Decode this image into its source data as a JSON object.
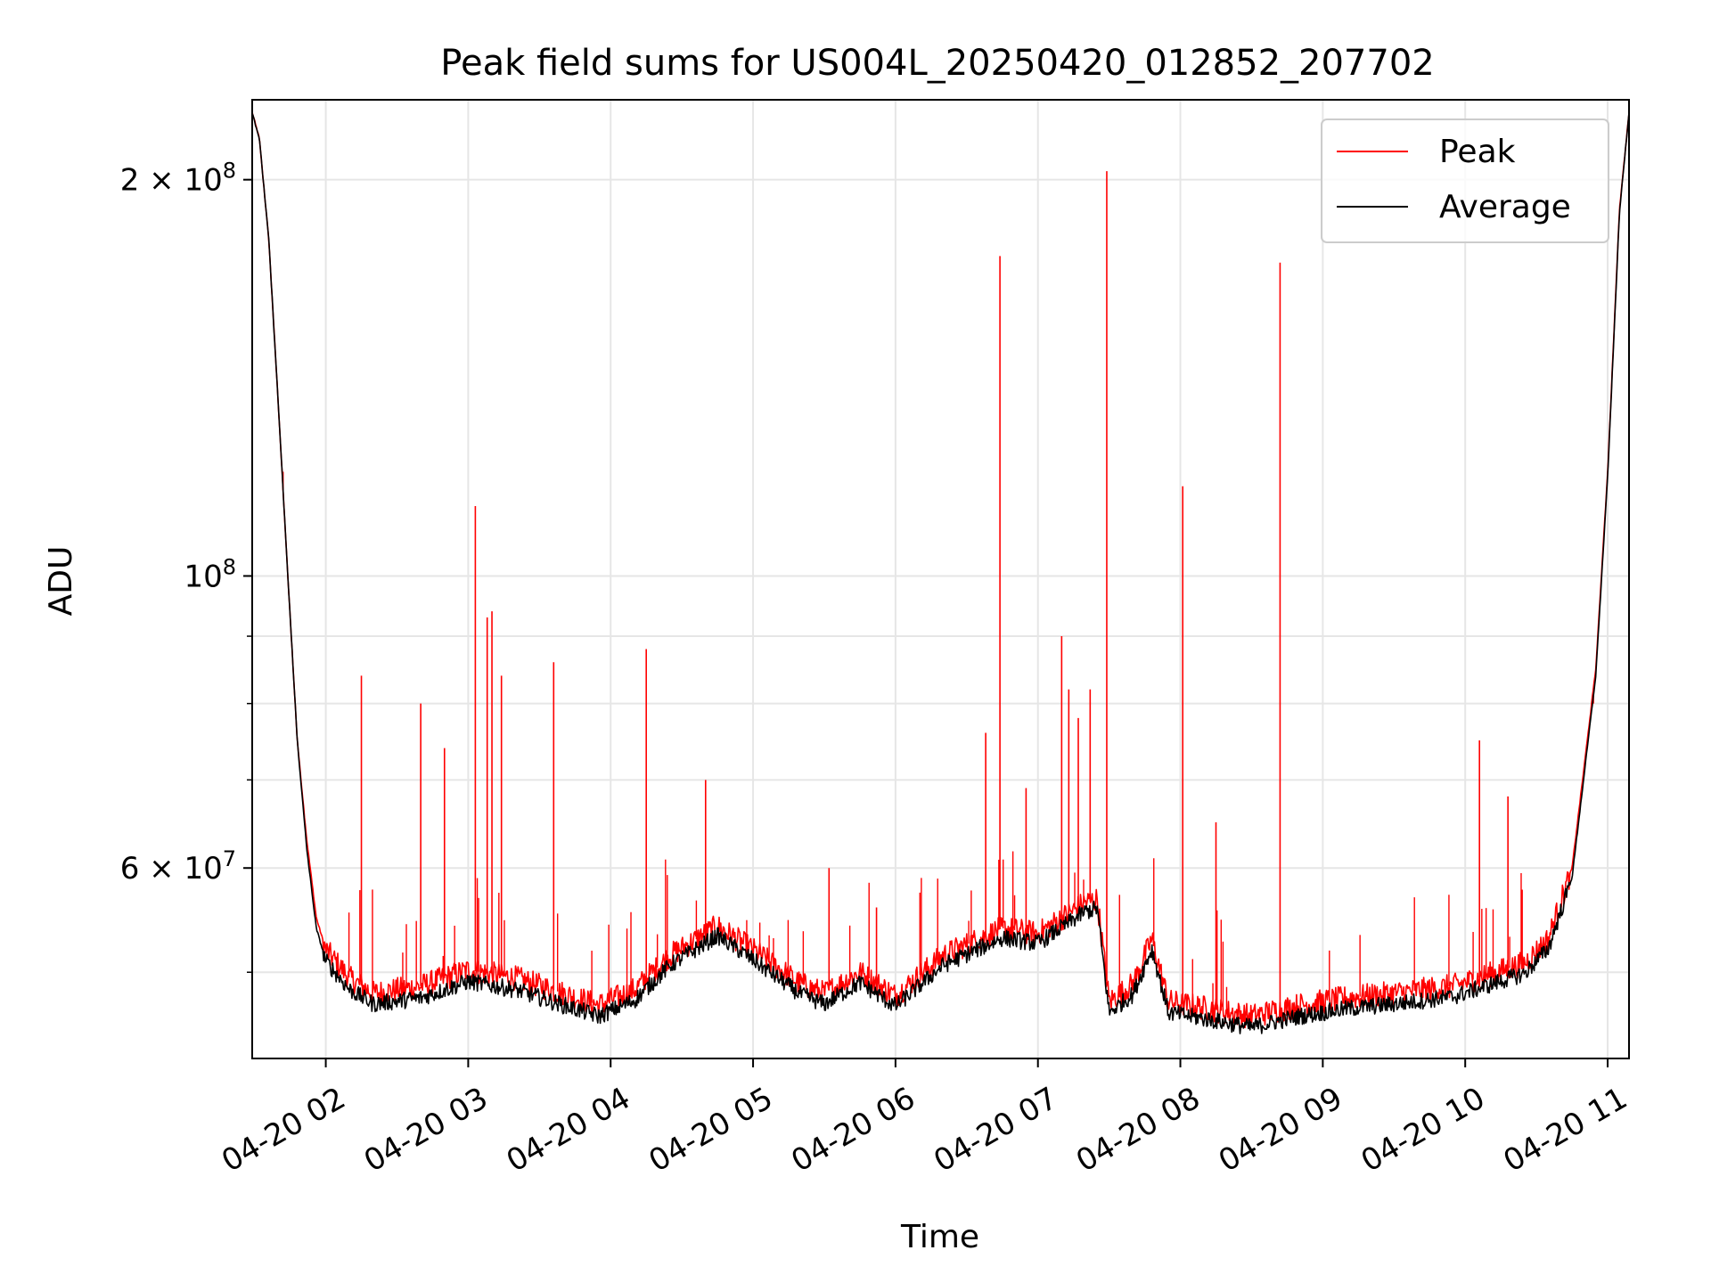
{
  "chart_data": {
    "type": "line",
    "title": "Peak field sums for US004L_20250420_012852_207702",
    "xlabel": "Time",
    "ylabel": "ADU",
    "yscale": "log",
    "grid": true,
    "legend_position": "upper right",
    "x_tick_labels": [
      "04-20 02",
      "04-20 03",
      "04-20 04",
      "04-20 05",
      "04-20 06",
      "04-20 07",
      "04-20 08",
      "04-20 09",
      "04-20 10",
      "04-20 11"
    ],
    "y_tick_labels": [
      {
        "value": 200000000,
        "mantissa": "2",
        "exp": "8"
      },
      {
        "value": 100000000,
        "mantissa": "",
        "exp": "8"
      },
      {
        "value": 60000000,
        "mantissa": "6",
        "exp": "7"
      }
    ],
    "xlim": [
      "2025-04-20 01:29",
      "2025-04-20 11:09"
    ],
    "ylim": [
      43000000,
      230000000
    ],
    "series": [
      {
        "name": "Peak",
        "color": "#ff0000",
        "points": [
          [
            "2025-04-20 01:29",
            225000000
          ],
          [
            "2025-04-20 01:32",
            215000000
          ],
          [
            "2025-04-20 01:36",
            180000000
          ],
          [
            "2025-04-20 01:40",
            135000000
          ],
          [
            "2025-04-20 01:44",
            100000000
          ],
          [
            "2025-04-20 01:48",
            75000000
          ],
          [
            "2025-04-20 01:52",
            63000000
          ],
          [
            "2025-04-20 01:56",
            55000000
          ],
          [
            "2025-04-20 02:00",
            52000000
          ],
          [
            "2025-04-20 02:10",
            49500000
          ],
          [
            "2025-04-20 02:20",
            48200000
          ],
          [
            "2025-04-20 02:40",
            48800000
          ],
          [
            "2025-04-20 03:00",
            50200000
          ],
          [
            "2025-04-20 03:20",
            49500000
          ],
          [
            "2025-04-20 03:40",
            48200000
          ],
          [
            "2025-04-20 03:55",
            47200000
          ],
          [
            "2025-04-20 04:10",
            48500000
          ],
          [
            "2025-04-20 04:25",
            51500000
          ],
          [
            "2025-04-20 04:45",
            54200000
          ],
          [
            "2025-04-20 05:00",
            52000000
          ],
          [
            "2025-04-20 05:20",
            49000000
          ],
          [
            "2025-04-20 05:30",
            48200000
          ],
          [
            "2025-04-20 05:45",
            50000000
          ],
          [
            "2025-04-20 06:00",
            48000000
          ],
          [
            "2025-04-20 06:20",
            51500000
          ],
          [
            "2025-04-20 06:45",
            54000000
          ],
          [
            "2025-04-20 07:00",
            53500000
          ],
          [
            "2025-04-20 07:20",
            56500000
          ],
          [
            "2025-04-20 07:25",
            56800000
          ],
          [
            "2025-04-20 07:30",
            47500000
          ],
          [
            "2025-04-20 07:40",
            49000000
          ],
          [
            "2025-04-20 07:48",
            53000000
          ],
          [
            "2025-04-20 07:55",
            47500000
          ],
          [
            "2025-04-20 08:10",
            47000000
          ],
          [
            "2025-04-20 08:30",
            46300000
          ],
          [
            "2025-04-20 08:50",
            47200000
          ],
          [
            "2025-04-20 09:10",
            47800000
          ],
          [
            "2025-04-20 09:30",
            48200000
          ],
          [
            "2025-04-20 09:55",
            48800000
          ],
          [
            "2025-04-20 10:10",
            49800000
          ],
          [
            "2025-04-20 10:25",
            50800000
          ],
          [
            "2025-04-20 10:35",
            53000000
          ],
          [
            "2025-04-20 10:45",
            60000000
          ],
          [
            "2025-04-20 10:55",
            85000000
          ],
          [
            "2025-04-20 11:00",
            120000000
          ],
          [
            "2025-04-20 11:05",
            190000000
          ],
          [
            "2025-04-20 11:09",
            225000000
          ]
        ],
        "spikes": [
          [
            "2025-04-20 01:42",
            120000000
          ],
          [
            "2025-04-20 02:15",
            84000000
          ],
          [
            "2025-04-20 02:40",
            80000000
          ],
          [
            "2025-04-20 02:50",
            74000000
          ],
          [
            "2025-04-20 03:03",
            113000000
          ],
          [
            "2025-04-20 03:08",
            93000000
          ],
          [
            "2025-04-20 03:10",
            94000000
          ],
          [
            "2025-04-20 03:14",
            84000000
          ],
          [
            "2025-04-20 03:36",
            86000000
          ],
          [
            "2025-04-20 04:15",
            88000000
          ],
          [
            "2025-04-20 04:40",
            70000000
          ],
          [
            "2025-04-20 05:32",
            60000000
          ],
          [
            "2025-04-20 05:52",
            56000000
          ],
          [
            "2025-04-20 06:38",
            76000000
          ],
          [
            "2025-04-20 06:44",
            175000000
          ],
          [
            "2025-04-20 06:55",
            69000000
          ],
          [
            "2025-04-20 07:10",
            90000000
          ],
          [
            "2025-04-20 07:13",
            82000000
          ],
          [
            "2025-04-20 07:17",
            78000000
          ],
          [
            "2025-04-20 07:22",
            82000000
          ],
          [
            "2025-04-20 07:29",
            203000000
          ],
          [
            "2025-04-20 08:01",
            117000000
          ],
          [
            "2025-04-20 08:15",
            65000000
          ],
          [
            "2025-04-20 08:42",
            173000000
          ],
          [
            "2025-04-20 10:06",
            75000000
          ],
          [
            "2025-04-20 10:18",
            68000000
          ],
          [
            "2025-04-20 10:54",
            80000000
          ]
        ]
      },
      {
        "name": "Average",
        "color": "#000000",
        "points": [
          [
            "2025-04-20 01:29",
            225000000
          ],
          [
            "2025-04-20 01:32",
            215000000
          ],
          [
            "2025-04-20 01:36",
            180000000
          ],
          [
            "2025-04-20 01:40",
            135000000
          ],
          [
            "2025-04-20 01:44",
            100000000
          ],
          [
            "2025-04-20 01:48",
            75000000
          ],
          [
            "2025-04-20 01:52",
            62000000
          ],
          [
            "2025-04-20 01:56",
            54000000
          ],
          [
            "2025-04-20 02:00",
            51000000
          ],
          [
            "2025-04-20 02:10",
            48500000
          ],
          [
            "2025-04-20 02:20",
            47300000
          ],
          [
            "2025-04-20 02:40",
            47800000
          ],
          [
            "2025-04-20 03:00",
            49200000
          ],
          [
            "2025-04-20 03:20",
            48500000
          ],
          [
            "2025-04-20 03:40",
            47200000
          ],
          [
            "2025-04-20 03:55",
            46300000
          ],
          [
            "2025-04-20 04:10",
            47600000
          ],
          [
            "2025-04-20 04:25",
            50600000
          ],
          [
            "2025-04-20 04:45",
            53300000
          ],
          [
            "2025-04-20 05:00",
            51100000
          ],
          [
            "2025-04-20 05:20",
            48100000
          ],
          [
            "2025-04-20 05:30",
            47300000
          ],
          [
            "2025-04-20 05:45",
            49100000
          ],
          [
            "2025-04-20 06:00",
            47100000
          ],
          [
            "2025-04-20 06:20",
            50600000
          ],
          [
            "2025-04-20 06:45",
            53100000
          ],
          [
            "2025-04-20 07:00",
            52600000
          ],
          [
            "2025-04-20 07:20",
            55600000
          ],
          [
            "2025-04-20 07:25",
            55900000
          ],
          [
            "2025-04-20 07:30",
            46600000
          ],
          [
            "2025-04-20 07:40",
            48100000
          ],
          [
            "2025-04-20 07:48",
            52100000
          ],
          [
            "2025-04-20 07:55",
            46600000
          ],
          [
            "2025-04-20 08:10",
            46100000
          ],
          [
            "2025-04-20 08:30",
            45400000
          ],
          [
            "2025-04-20 08:50",
            46300000
          ],
          [
            "2025-04-20 09:10",
            46900000
          ],
          [
            "2025-04-20 09:30",
            47300000
          ],
          [
            "2025-04-20 09:55",
            47900000
          ],
          [
            "2025-04-20 10:10",
            48900000
          ],
          [
            "2025-04-20 10:25",
            49900000
          ],
          [
            "2025-04-20 10:35",
            52100000
          ],
          [
            "2025-04-20 10:45",
            59000000
          ],
          [
            "2025-04-20 10:55",
            84000000
          ],
          [
            "2025-04-20 11:00",
            119000000
          ],
          [
            "2025-04-20 11:05",
            189000000
          ],
          [
            "2025-04-20 11:09",
            225000000
          ]
        ]
      }
    ]
  }
}
